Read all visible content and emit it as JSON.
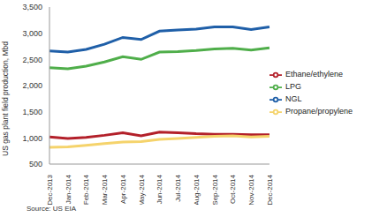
{
  "chart_data": {
    "type": "line",
    "y_label": "US gas plant field production, Mbd",
    "source": "Source: US EIA",
    "categories": [
      "Dec-2013",
      "Jan-2014",
      "Feb-2014",
      "Mar-2014",
      "Apr-2014",
      "May-2014",
      "Jun-2014",
      "Jul-2014",
      "Aug-2014",
      "Sep-2014",
      "Oct-2014",
      "Nov-2014",
      "Dec-2014"
    ],
    "series": [
      {
        "name": "NGL",
        "color": "#1f5fa8",
        "values": [
          2660,
          2640,
          2690,
          2790,
          2920,
          2880,
          3040,
          3060,
          3080,
          3120,
          3120,
          3070,
          3120
        ]
      },
      {
        "name": "LPG",
        "color": "#4fae4a",
        "values": [
          2340,
          2320,
          2370,
          2450,
          2550,
          2500,
          2640,
          2650,
          2670,
          2700,
          2710,
          2680,
          2720
        ]
      },
      {
        "name": "Ethane/ethylene",
        "color": "#b3202a",
        "values": [
          1020,
          990,
          1010,
          1050,
          1100,
          1040,
          1110,
          1100,
          1080,
          1070,
          1070,
          1060,
          1060
        ]
      },
      {
        "name": "Propane/propylene",
        "color": "#f5d36b",
        "values": [
          820,
          830,
          860,
          890,
          920,
          930,
          970,
          990,
          1010,
          1030,
          1040,
          1020,
          1030
        ]
      }
    ],
    "ylim": [
      500,
      3500
    ],
    "yticks": [
      500,
      {
        "value": 1000,
        "label": "1,000"
      },
      {
        "value": 1500,
        "label": "1,500"
      },
      {
        "value": 2000,
        "label": "2,000"
      },
      {
        "value": 2500,
        "label": "2,500"
      },
      {
        "value": 3000,
        "label": "3,000"
      },
      {
        "value": 3500,
        "label": "3,500"
      }
    ],
    "grid": false,
    "legend": "right"
  }
}
